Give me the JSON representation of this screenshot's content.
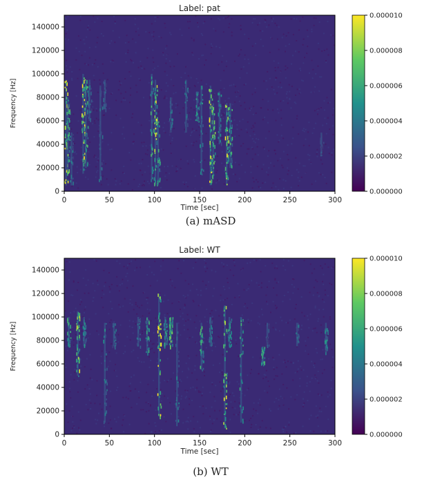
{
  "chart_data": [
    {
      "type": "heatmap",
      "panel": "(a) mASD",
      "title": "Label: pat",
      "xlabel": "Time [sec]",
      "ylabel": "Frequency [Hz]",
      "xlim": [
        0,
        300
      ],
      "ylim": [
        0,
        150000
      ],
      "xticks": [
        "0",
        "50",
        "100",
        "150",
        "200",
        "250",
        "300"
      ],
      "yticks": [
        "0",
        "20000",
        "40000",
        "60000",
        "80000",
        "100000",
        "120000",
        "140000"
      ],
      "colorbar": {
        "min": 0,
        "max": 1e-05,
        "ticks": [
          "0.000000",
          "0.000002",
          "0.000004",
          "0.000006",
          "0.000008",
          "0.000010"
        ],
        "colormap": [
          "#440154",
          "#3b528b",
          "#21918c",
          "#5ec962",
          "#fde725"
        ]
      },
      "events": [
        {
          "t": 2,
          "f_lo": 5000,
          "f_hi": 95000,
          "level": 1.0
        },
        {
          "t": 4,
          "f_lo": 15000,
          "f_hi": 80000,
          "level": 0.7
        },
        {
          "t": 8,
          "f_lo": 5000,
          "f_hi": 50000,
          "level": 0.4
        },
        {
          "t": 21,
          "f_lo": 15000,
          "f_hi": 100000,
          "level": 1.0
        },
        {
          "t": 24,
          "f_lo": 20000,
          "f_hi": 95000,
          "level": 0.6
        },
        {
          "t": 28,
          "f_lo": 60000,
          "f_hi": 95000,
          "level": 0.35
        },
        {
          "t": 40,
          "f_lo": 10000,
          "f_hi": 90000,
          "level": 0.35
        },
        {
          "t": 45,
          "f_lo": 70000,
          "f_hi": 95000,
          "level": 0.3
        },
        {
          "t": 97,
          "f_lo": 10000,
          "f_hi": 100000,
          "level": 0.6
        },
        {
          "t": 101,
          "f_lo": 5000,
          "f_hi": 95000,
          "level": 0.9
        },
        {
          "t": 104,
          "f_lo": 5000,
          "f_hi": 60000,
          "level": 0.55
        },
        {
          "t": 118,
          "f_lo": 50000,
          "f_hi": 80000,
          "level": 0.35
        },
        {
          "t": 135,
          "f_lo": 50000,
          "f_hi": 95000,
          "level": 0.35
        },
        {
          "t": 147,
          "f_lo": 60000,
          "f_hi": 85000,
          "level": 0.5
        },
        {
          "t": 152,
          "f_lo": 15000,
          "f_hi": 90000,
          "level": 0.5
        },
        {
          "t": 162,
          "f_lo": 5000,
          "f_hi": 90000,
          "level": 1.0
        },
        {
          "t": 165,
          "f_lo": 10000,
          "f_hi": 75000,
          "level": 0.7
        },
        {
          "t": 172,
          "f_lo": 40000,
          "f_hi": 85000,
          "level": 0.45
        },
        {
          "t": 180,
          "f_lo": 5000,
          "f_hi": 75000,
          "level": 0.85
        },
        {
          "t": 184,
          "f_lo": 20000,
          "f_hi": 75000,
          "level": 0.6
        },
        {
          "t": 285,
          "f_lo": 30000,
          "f_hi": 50000,
          "level": 0.25
        }
      ]
    },
    {
      "type": "heatmap",
      "panel": "(b) WT",
      "title": "Label: WT",
      "xlabel": "Time [sec]",
      "ylabel": "Frequency [Hz]",
      "xlim": [
        0,
        300
      ],
      "ylim": [
        0,
        150000
      ],
      "xticks": [
        "0",
        "50",
        "100",
        "150",
        "200",
        "250",
        "300"
      ],
      "yticks": [
        "0",
        "20000",
        "40000",
        "60000",
        "80000",
        "100000",
        "120000",
        "140000"
      ],
      "colorbar": {
        "min": 0,
        "max": 1e-05,
        "ticks": [
          "0.000000",
          "0.000002",
          "0.000004",
          "0.000006",
          "0.000008",
          "0.000010"
        ],
        "colormap": [
          "#440154",
          "#3b528b",
          "#21918c",
          "#5ec962",
          "#fde725"
        ]
      },
      "events": [
        {
          "t": 5,
          "f_lo": 75000,
          "f_hi": 100000,
          "level": 0.55
        },
        {
          "t": 15,
          "f_lo": 50000,
          "f_hi": 105000,
          "level": 0.8
        },
        {
          "t": 22,
          "f_lo": 75000,
          "f_hi": 100000,
          "level": 0.45
        },
        {
          "t": 45,
          "f_lo": 10000,
          "f_hi": 95000,
          "level": 0.45
        },
        {
          "t": 55,
          "f_lo": 75000,
          "f_hi": 95000,
          "level": 0.4
        },
        {
          "t": 82,
          "f_lo": 75000,
          "f_hi": 100000,
          "level": 0.35
        },
        {
          "t": 92,
          "f_lo": 70000,
          "f_hi": 100000,
          "level": 0.55
        },
        {
          "t": 105,
          "f_lo": 15000,
          "f_hi": 120000,
          "level": 1.0
        },
        {
          "t": 112,
          "f_lo": 75000,
          "f_hi": 100000,
          "level": 0.5
        },
        {
          "t": 118,
          "f_lo": 75000,
          "f_hi": 100000,
          "level": 0.7
        },
        {
          "t": 125,
          "f_lo": 10000,
          "f_hi": 95000,
          "level": 0.4
        },
        {
          "t": 152,
          "f_lo": 55000,
          "f_hi": 95000,
          "level": 0.6
        },
        {
          "t": 162,
          "f_lo": 75000,
          "f_hi": 100000,
          "level": 0.4
        },
        {
          "t": 178,
          "f_lo": 5000,
          "f_hi": 110000,
          "level": 0.9
        },
        {
          "t": 183,
          "f_lo": 75000,
          "f_hi": 100000,
          "level": 0.5
        },
        {
          "t": 196,
          "f_lo": 10000,
          "f_hi": 100000,
          "level": 0.55
        },
        {
          "t": 220,
          "f_lo": 60000,
          "f_hi": 75000,
          "level": 0.55
        },
        {
          "t": 225,
          "f_lo": 75000,
          "f_hi": 95000,
          "level": 0.3
        },
        {
          "t": 258,
          "f_lo": 75000,
          "f_hi": 95000,
          "level": 0.35
        },
        {
          "t": 290,
          "f_lo": 70000,
          "f_hi": 95000,
          "level": 0.45
        }
      ]
    }
  ]
}
